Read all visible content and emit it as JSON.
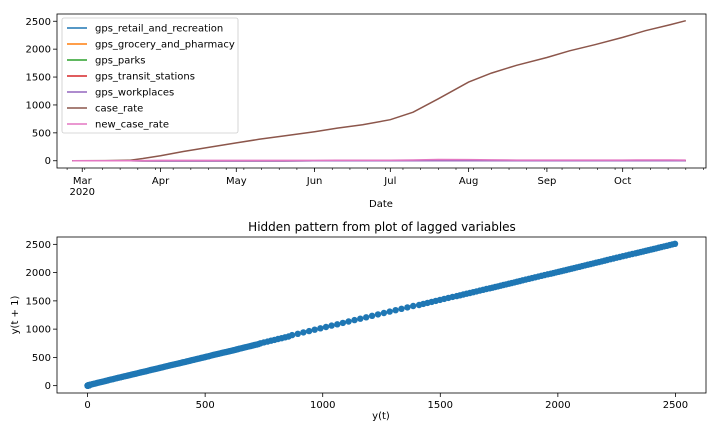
{
  "chart_data": [
    {
      "type": "line",
      "title": "",
      "xlabel": "Date",
      "ylabel": "",
      "x_ticks": [
        "Mar\n2020",
        "Apr",
        "May",
        "Jun",
        "Jul",
        "Aug",
        "Sep",
        "Oct"
      ],
      "x_tick_dates": [
        "2020-03-01",
        "2020-04-01",
        "2020-05-01",
        "2020-06-01",
        "2020-07-01",
        "2020-08-01",
        "2020-09-01",
        "2020-10-01"
      ],
      "xlim": [
        "2020-02-20",
        "2020-11-03"
      ],
      "y_ticks": [
        0,
        500,
        1000,
        1500,
        2000,
        2500
      ],
      "ylim": [
        -130,
        2630
      ],
      "legend_placement": "upper-left",
      "x": [
        "2020-02-26",
        "2020-03-10",
        "2020-03-20",
        "2020-03-25",
        "2020-04-01",
        "2020-04-10",
        "2020-04-20",
        "2020-05-01",
        "2020-05-10",
        "2020-05-20",
        "2020-06-01",
        "2020-06-10",
        "2020-06-20",
        "2020-07-01",
        "2020-07-10",
        "2020-07-20",
        "2020-08-01",
        "2020-08-10",
        "2020-08-20",
        "2020-09-01",
        "2020-09-10",
        "2020-09-20",
        "2020-10-01",
        "2020-10-10",
        "2020-10-20",
        "2020-10-26"
      ],
      "series": [
        {
          "name": "gps_retail_and_recreation",
          "color": "#1f77b4",
          "values": [
            0,
            0,
            -1,
            -2,
            -3,
            -3,
            -3,
            -2,
            -2,
            -2,
            -1,
            -1,
            -1,
            -1,
            -1,
            -1,
            -1,
            -1,
            -1,
            -1,
            -1,
            -1,
            -1,
            -1,
            -1,
            -1
          ]
        },
        {
          "name": "gps_grocery_and_pharmacy",
          "color": "#ff7f0e",
          "values": [
            0,
            0,
            0,
            -1,
            -1,
            -1,
            -1,
            -1,
            0,
            0,
            0,
            0,
            0,
            0,
            0,
            0,
            0,
            0,
            0,
            0,
            0,
            0,
            0,
            0,
            0,
            0
          ]
        },
        {
          "name": "gps_parks",
          "color": "#2ca02c",
          "values": [
            0,
            0,
            0,
            0,
            0,
            0,
            0,
            0,
            0,
            0,
            0,
            0,
            0,
            0,
            0,
            0,
            0,
            0,
            0,
            0,
            0,
            0,
            0,
            0,
            0,
            0
          ]
        },
        {
          "name": "gps_transit_stations",
          "color": "#d62728",
          "values": [
            0,
            0,
            -1,
            -2,
            -2,
            -2,
            -2,
            -2,
            -2,
            -2,
            -1,
            -1,
            -1,
            -1,
            -1,
            -1,
            -1,
            -1,
            -1,
            -1,
            -1,
            -1,
            -1,
            -1,
            -1,
            -1
          ]
        },
        {
          "name": "gps_workplaces",
          "color": "#9467bd",
          "values": [
            0,
            0,
            -1,
            -2,
            -2,
            -2,
            -2,
            -2,
            -2,
            -2,
            -1,
            -1,
            -1,
            -1,
            -1,
            -1,
            -1,
            -1,
            -1,
            -1,
            -1,
            -1,
            -1,
            -1,
            -1,
            -1
          ]
        },
        {
          "name": "case_rate",
          "color": "#8c564b",
          "values": [
            0,
            2,
            10,
            40,
            90,
            165,
            240,
            320,
            385,
            445,
            520,
            585,
            645,
            735,
            870,
            1110,
            1410,
            1570,
            1710,
            1850,
            1970,
            2080,
            2210,
            2330,
            2440,
            2510
          ]
        },
        {
          "name": "new_case_rate",
          "color": "#e377c2",
          "values": [
            0,
            0,
            1,
            3,
            6,
            7,
            7,
            7,
            7,
            7,
            7,
            8,
            8,
            10,
            14,
            22,
            20,
            16,
            12,
            11,
            11,
            11,
            12,
            13,
            13,
            12
          ]
        }
      ]
    },
    {
      "type": "scatter",
      "title": "Hidden pattern from plot of lagged variables",
      "xlabel": "y(t)",
      "ylabel": "y(t + 1)",
      "x_ticks": [
        0,
        500,
        1000,
        1500,
        2000,
        2500
      ],
      "y_ticks": [
        0,
        500,
        1000,
        1500,
        2000,
        2500
      ],
      "xlim": [
        -130,
        2630
      ],
      "ylim": [
        -130,
        2630
      ],
      "color": "#1f77b4",
      "relation": "y(t+1) ≈ y(t), points densely spanning 0 to ~2510"
    }
  ]
}
